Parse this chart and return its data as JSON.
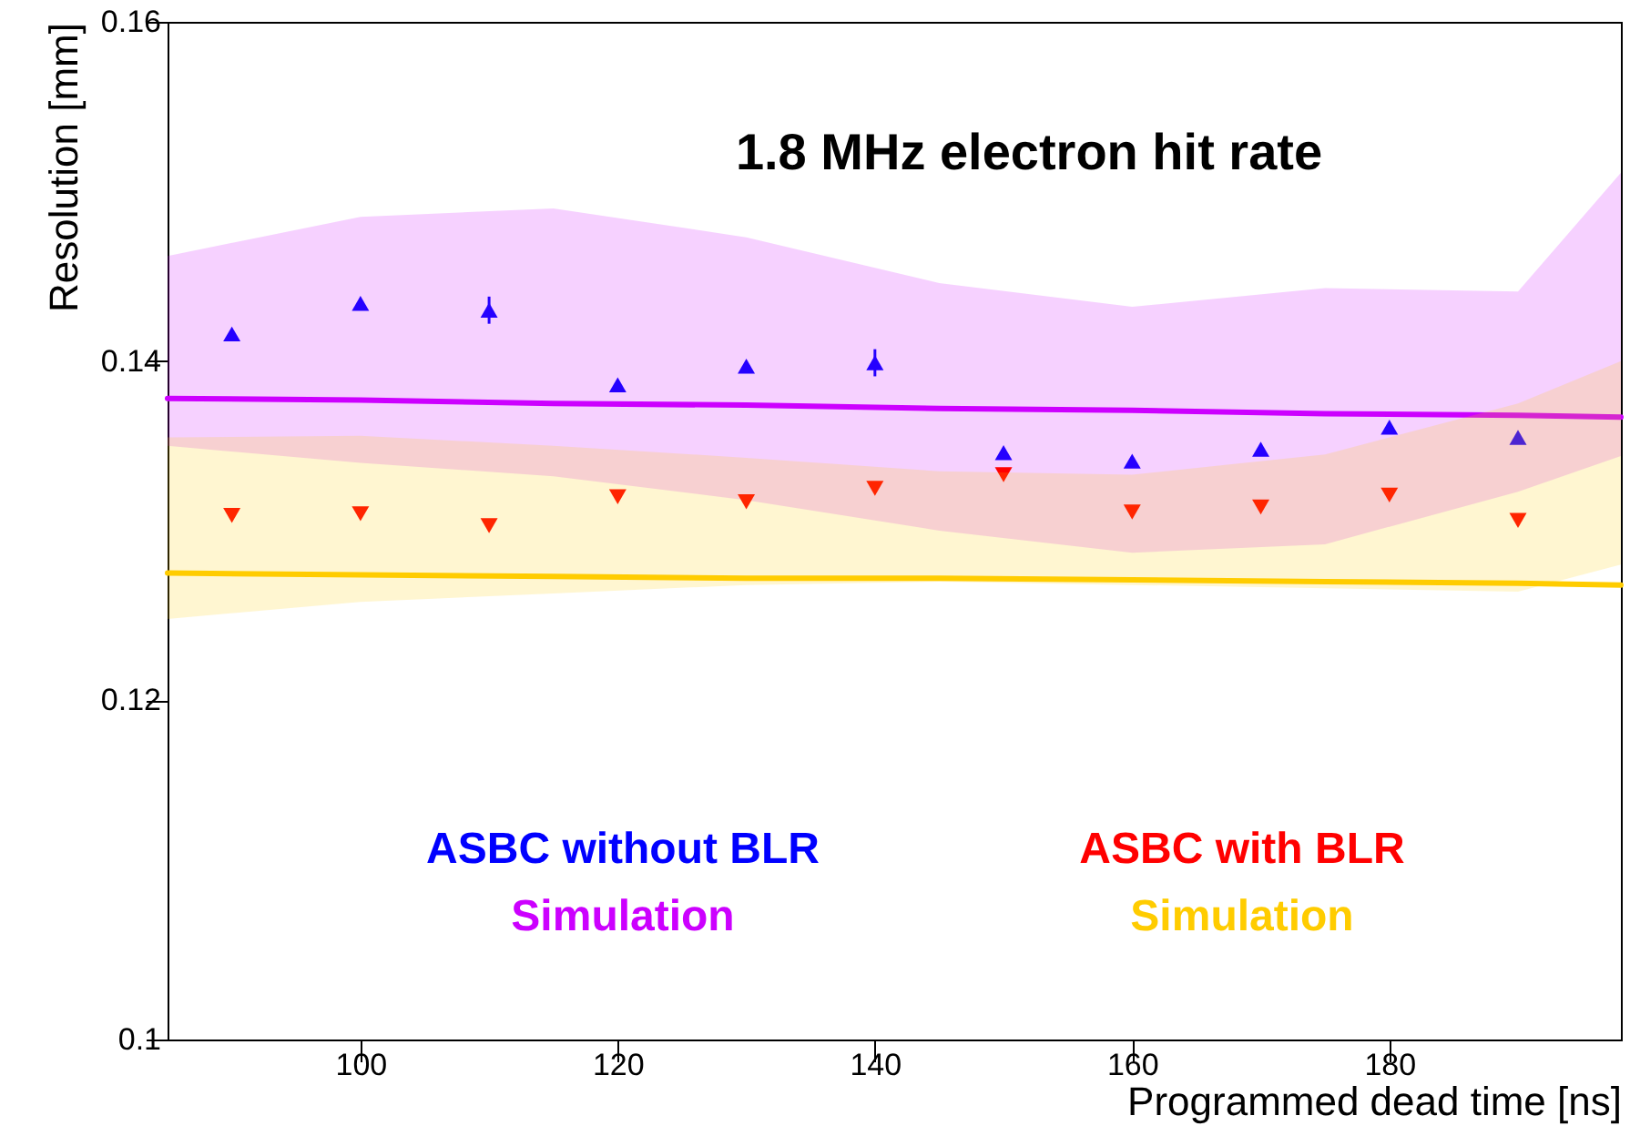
{
  "chart_data": {
    "type": "scatter",
    "title": "1.8 MHz electron hit rate",
    "xlabel": "Programmed dead time [ns]",
    "ylabel": "Resolution [mm]",
    "xlim": [
      85,
      198
    ],
    "xticks": [
      100,
      120,
      140,
      160,
      180
    ],
    "ylim": [
      0.1,
      0.16
    ],
    "yticks": [
      0.1,
      0.12,
      0.14,
      0.16
    ],
    "grid": false,
    "legend": false,
    "series": [
      {
        "name": "ASBC without BLR",
        "marker": "triangle",
        "color": "#0000ff",
        "x": [
          90,
          100,
          110,
          120,
          130,
          140,
          150,
          160,
          170,
          180,
          190
        ],
        "values": [
          0.1416,
          0.1434,
          0.143,
          0.1386,
          0.1397,
          0.1399,
          0.1346,
          0.1341,
          0.1348,
          0.1361,
          0.1355
        ],
        "errors": [
          null,
          null,
          0.0008,
          null,
          null,
          0.0008,
          null,
          null,
          null,
          null,
          null
        ]
      },
      {
        "name": "Simulation",
        "type": "line",
        "color": "#cc00ff",
        "x": [
          85,
          100,
          115,
          130,
          145,
          160,
          175,
          190,
          198
        ],
        "values": [
          0.1378,
          0.1377,
          0.1375,
          0.1374,
          0.1372,
          0.1371,
          0.1369,
          0.1368,
          0.1367
        ],
        "lower": [
          0.135,
          0.134,
          0.1332,
          0.1318,
          0.13,
          0.1287,
          0.1292,
          0.1323,
          0.1344
        ],
        "upper": [
          0.1462,
          0.1485,
          0.149,
          0.1473,
          0.1446,
          0.1432,
          0.1443,
          0.1441,
          0.1511
        ]
      },
      {
        "name": "ASBC with BLR",
        "marker": "triangle",
        "color": "#ff0000",
        "x": [
          90,
          100,
          110,
          120,
          130,
          140,
          150,
          160,
          170,
          180,
          190
        ],
        "values": [
          0.1309,
          0.131,
          0.1303,
          0.132,
          0.1317,
          0.1325,
          0.1333,
          0.1311,
          0.1314,
          0.1321,
          0.1306
        ]
      },
      {
        "name": "Simulation",
        "type": "line",
        "color": "#ffcc00",
        "x": [
          85,
          100,
          115,
          130,
          145,
          160,
          175,
          190,
          198
        ],
        "values": [
          0.1275,
          0.1274,
          0.1273,
          0.1272,
          0.1272,
          0.1271,
          0.127,
          0.1269,
          0.1268
        ],
        "lower": [
          0.1248,
          0.1258,
          0.1263,
          0.1268,
          0.127,
          0.1268,
          0.1266,
          0.1264,
          0.128
        ],
        "upper": [
          0.1355,
          0.1356,
          0.135,
          0.1343,
          0.1335,
          0.1333,
          0.1345,
          0.1375,
          0.14
        ]
      }
    ]
  }
}
